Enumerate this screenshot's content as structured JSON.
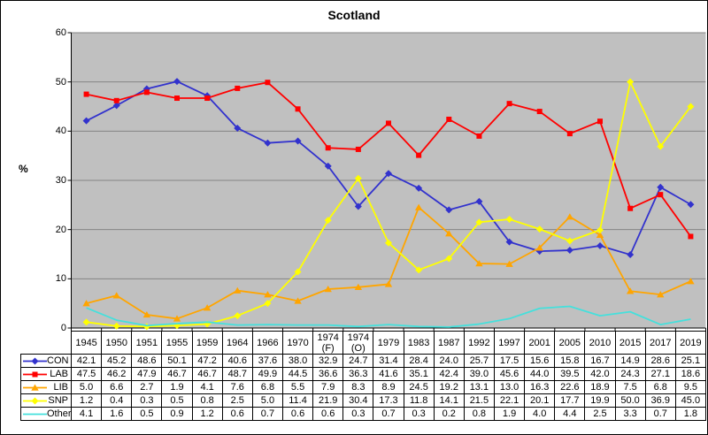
{
  "window": {
    "background": "#FFFFFF",
    "border_color": "#000000"
  },
  "chart_data": {
    "type": "line",
    "title": "Scotland",
    "xlabel": "",
    "ylabel": "%",
    "ylim": [
      0,
      60
    ],
    "yticks": [
      0,
      10,
      20,
      30,
      40,
      50,
      60
    ],
    "grid": "horizontal",
    "plot_background": "#C0C0C0",
    "gridline_color": "#848484",
    "axis_color": "#000000",
    "legend_position": "table-left-column",
    "categories": [
      "1945",
      "1950",
      "1951",
      "1955",
      "1959",
      "1964",
      "1966",
      "1970",
      "1974 (F)",
      "1974 (O)",
      "1979",
      "1983",
      "1987",
      "1992",
      "1997",
      "2001",
      "2005",
      "2010",
      "2015",
      "2017",
      "2019"
    ],
    "series": [
      {
        "name": "CON",
        "color": "#3232CD",
        "marker": "diamond",
        "values": [
          42.1,
          45.2,
          48.6,
          50.1,
          47.2,
          40.6,
          37.6,
          38.0,
          32.9,
          24.7,
          31.4,
          28.4,
          24.0,
          25.7,
          17.5,
          15.6,
          15.8,
          16.7,
          14.9,
          28.6,
          25.1
        ]
      },
      {
        "name": "LAB",
        "color": "#FF0000",
        "marker": "square",
        "values": [
          47.5,
          46.2,
          47.9,
          46.7,
          46.7,
          48.7,
          49.9,
          44.5,
          36.6,
          36.3,
          41.6,
          35.1,
          42.4,
          39.0,
          45.6,
          44.0,
          39.5,
          42.0,
          24.3,
          27.1,
          18.6
        ]
      },
      {
        "name": "LIB",
        "color": "#FFA500",
        "marker": "triangle",
        "values": [
          5.0,
          6.6,
          2.7,
          1.9,
          4.1,
          7.6,
          6.8,
          5.5,
          7.9,
          8.3,
          8.9,
          24.5,
          19.2,
          13.1,
          13.0,
          16.3,
          22.6,
          18.9,
          7.5,
          6.8,
          9.5
        ]
      },
      {
        "name": "SNP",
        "color": "#FFFF00",
        "marker": "diamond",
        "values": [
          1.2,
          0.4,
          0.3,
          0.5,
          0.8,
          2.5,
          5.0,
          11.4,
          21.9,
          30.4,
          17.3,
          11.8,
          14.1,
          21.5,
          22.1,
          20.1,
          17.7,
          19.9,
          50.0,
          36.9,
          45.0
        ]
      },
      {
        "name": "Other",
        "color": "#45E0DC",
        "marker": "none",
        "values": [
          4.1,
          1.6,
          0.5,
          0.9,
          1.2,
          0.6,
          0.7,
          0.6,
          0.6,
          0.3,
          0.7,
          0.3,
          0.2,
          0.8,
          1.9,
          4.0,
          4.4,
          2.5,
          3.3,
          0.7,
          1.8
        ]
      }
    ]
  }
}
